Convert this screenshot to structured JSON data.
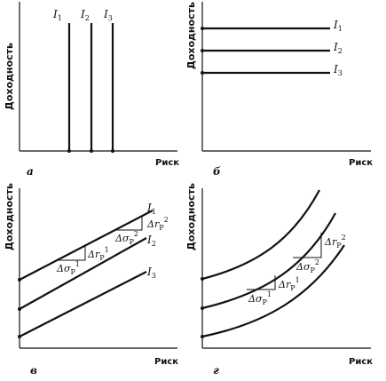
{
  "axis_labels": {
    "y": "Доходность",
    "x": "Риск"
  },
  "panels": [
    {
      "letter": "а",
      "curves": [
        {
          "name": "I",
          "sub": "1"
        },
        {
          "name": "I",
          "sub": "2"
        },
        {
          "name": "I",
          "sub": "3"
        }
      ]
    },
    {
      "letter": "б",
      "curves": [
        {
          "name": "I",
          "sub": "1"
        },
        {
          "name": "I",
          "sub": "2"
        },
        {
          "name": "I",
          "sub": "3"
        }
      ]
    },
    {
      "letter": "в",
      "curves": [
        {
          "name": "I",
          "sub": "1"
        },
        {
          "name": "I",
          "sub": "2"
        },
        {
          "name": "I",
          "sub": "3"
        }
      ],
      "annotations": [
        {
          "sigma": "Δσ",
          "sigma_sub": "P",
          "sigma_sup": "1",
          "r": "Δr",
          "r_sub": "P",
          "r_sup": "1"
        },
        {
          "sigma": "Δσ",
          "sigma_sub": "P",
          "sigma_sup": "2",
          "r": "Δr",
          "r_sub": "P",
          "r_sup": "2"
        }
      ]
    },
    {
      "letter": "г",
      "annotations": [
        {
          "sigma": "Δσ",
          "sigma_sub": "P",
          "sigma_sup": "1",
          "r": "Δr",
          "r_sub": "P",
          "r_sup": "1"
        },
        {
          "sigma": "Δσ",
          "sigma_sub": "P",
          "sigma_sup": "2",
          "r": "Δr",
          "r_sub": "P",
          "r_sup": "2"
        }
      ]
    }
  ]
}
